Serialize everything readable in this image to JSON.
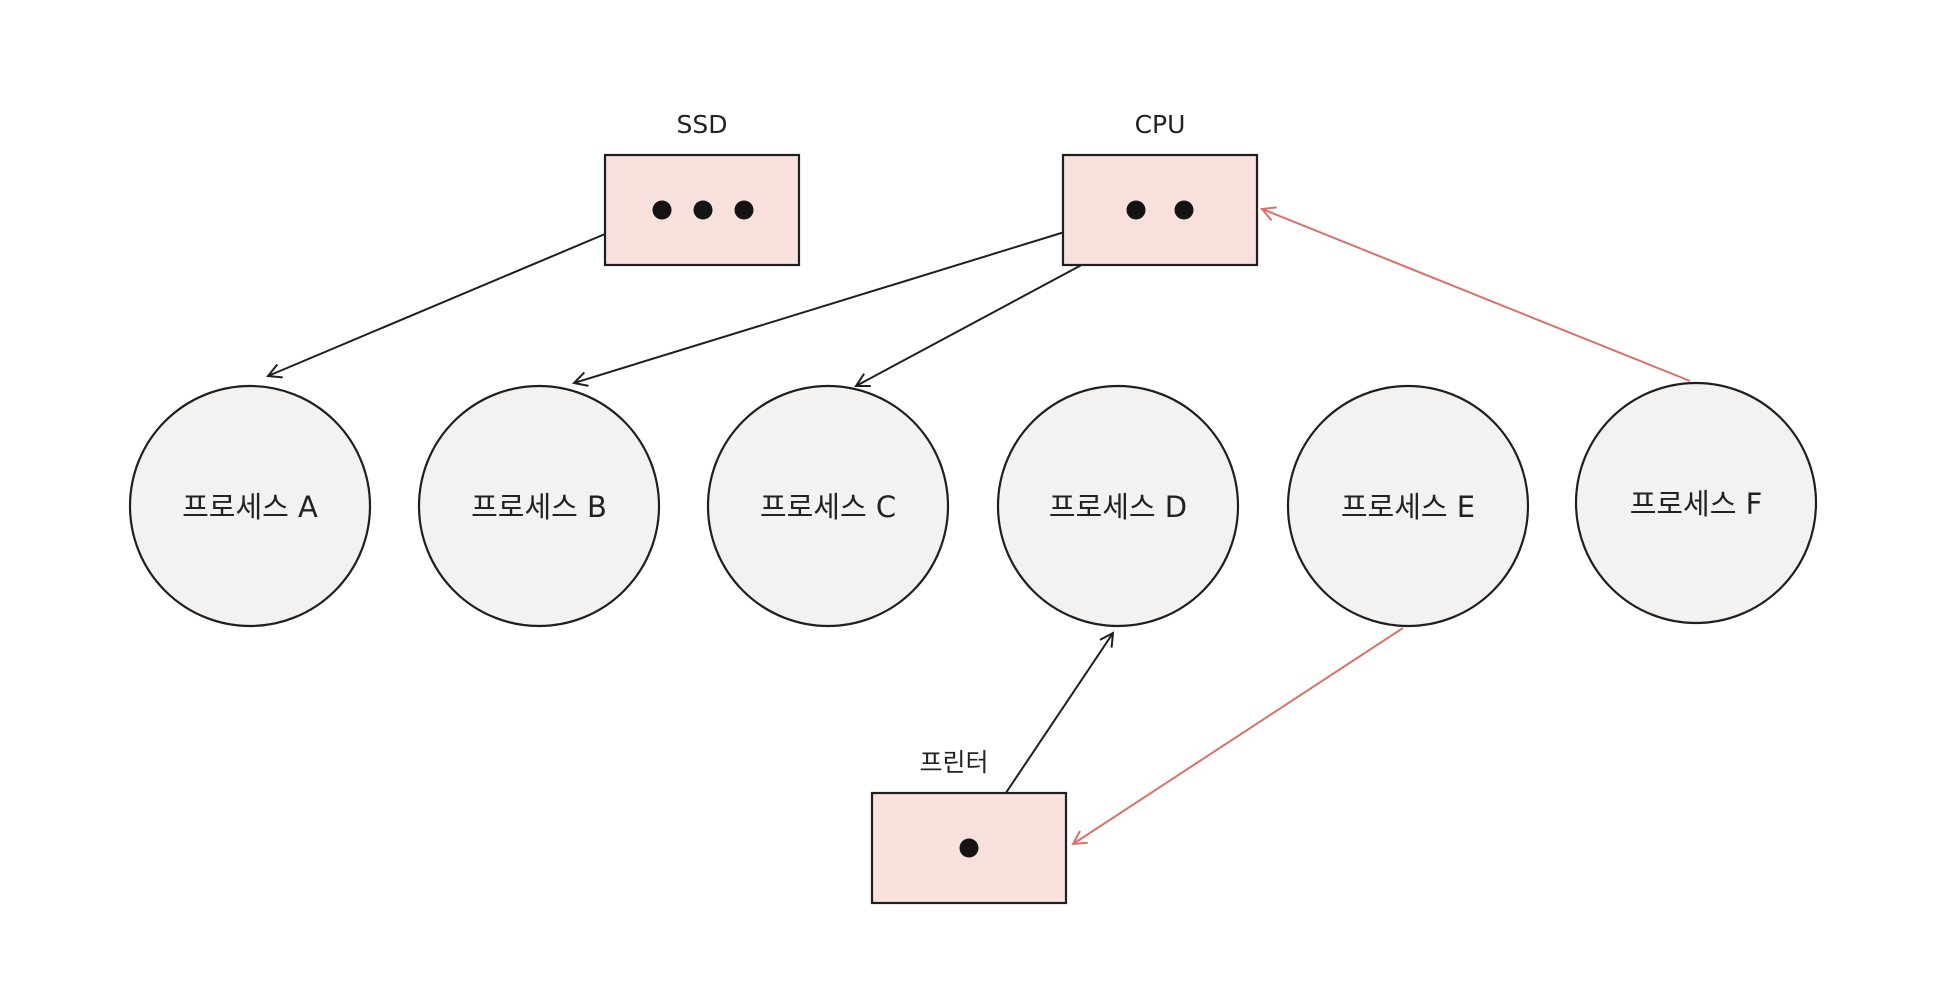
{
  "resources": {
    "ssd": {
      "label": "SSD"
    },
    "cpu": {
      "label": "CPU"
    },
    "printer": {
      "label": "프린터"
    }
  },
  "processes": [
    {
      "label": "프로세스 A"
    },
    {
      "label": "프로세스 B"
    },
    {
      "label": "프로세스 C"
    },
    {
      "label": "프로세스 D"
    },
    {
      "label": "프로세스 E"
    },
    {
      "label": "프로세스 F"
    }
  ],
  "colors": {
    "resource_fill": "#f8e0dc",
    "process_fill": "#f3f2f1",
    "request_edge": "#d9716b",
    "assignment_edge": "#1f1f1f"
  },
  "edges": [
    {
      "from": "ssd",
      "to": "프로세스 A",
      "kind": "assignment"
    },
    {
      "from": "cpu",
      "to": "프로세스 B",
      "kind": "assignment"
    },
    {
      "from": "cpu",
      "to": "프로세스 C",
      "kind": "assignment"
    },
    {
      "from": "printer",
      "to": "프로세스 D",
      "kind": "assignment"
    },
    {
      "from": "프로세스 E",
      "to": "printer",
      "kind": "request"
    },
    {
      "from": "프로세스 F",
      "to": "cpu",
      "kind": "request"
    }
  ]
}
